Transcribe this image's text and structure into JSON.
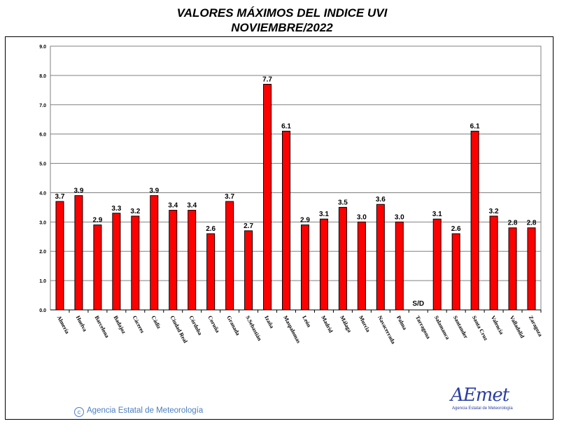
{
  "title_line1": "VALORES MÁXIMOS DEL INDICE UVI",
  "title_line2": "NOVIEMBRE/2022",
  "footer_text": "Agencia Estatal de Meteorología",
  "logo": {
    "word": "AEmet",
    "sub": "Agencia Estatal de Meteorología"
  },
  "colors": {
    "bar": "#ff0000",
    "grid": "#808080",
    "axis": "#808080"
  },
  "chart_data": {
    "type": "bar",
    "title": "VALORES MÁXIMOS DEL INDICE UVI",
    "subtitle": "NOVIEMBRE/2022",
    "ylim": [
      0,
      9
    ],
    "yticks": [
      "0.0",
      "1.0",
      "2.0",
      "3.0",
      "4.0",
      "5.0",
      "6.0",
      "7.0",
      "8.0",
      "9.0"
    ],
    "grid": true,
    "categories": [
      "Almería",
      "Huelva",
      "Barcelona",
      "Badajoz",
      "Cáceres",
      "Cádiz",
      "Ciudad Real",
      "Córdoba",
      "Coruña",
      "Granada",
      "S.Sebastián",
      "Izaña",
      "Maspalomas",
      "León",
      "Madrid",
      "Málaga",
      "Murcia",
      "Navacerrada",
      "Palma",
      "Tarragona",
      "Salamanca",
      "Santander",
      "Santa Cruz",
      "Valencia",
      "Valladolid",
      "Zaragoza"
    ],
    "values": [
      3.7,
      3.9,
      2.9,
      3.3,
      3.2,
      3.9,
      3.4,
      3.4,
      2.6,
      3.7,
      2.7,
      7.7,
      6.1,
      2.9,
      3.1,
      3.5,
      3.0,
      3.6,
      3.0,
      null,
      3.1,
      2.6,
      6.1,
      3.2,
      2.8,
      2.8
    ],
    "labels": [
      "3.7",
      "3.9",
      "2.9",
      "3.3",
      "3.2",
      "3.9",
      "3.4",
      "3.4",
      "2.6",
      "3.7",
      "2.7",
      "7.7",
      "6.1",
      "2.9",
      "3.1",
      "3.5",
      "3.0",
      "3.6",
      "3.0",
      "S/D",
      "3.1",
      "2.6",
      "6.1",
      "3.2",
      "2.8",
      "2.8"
    ]
  }
}
